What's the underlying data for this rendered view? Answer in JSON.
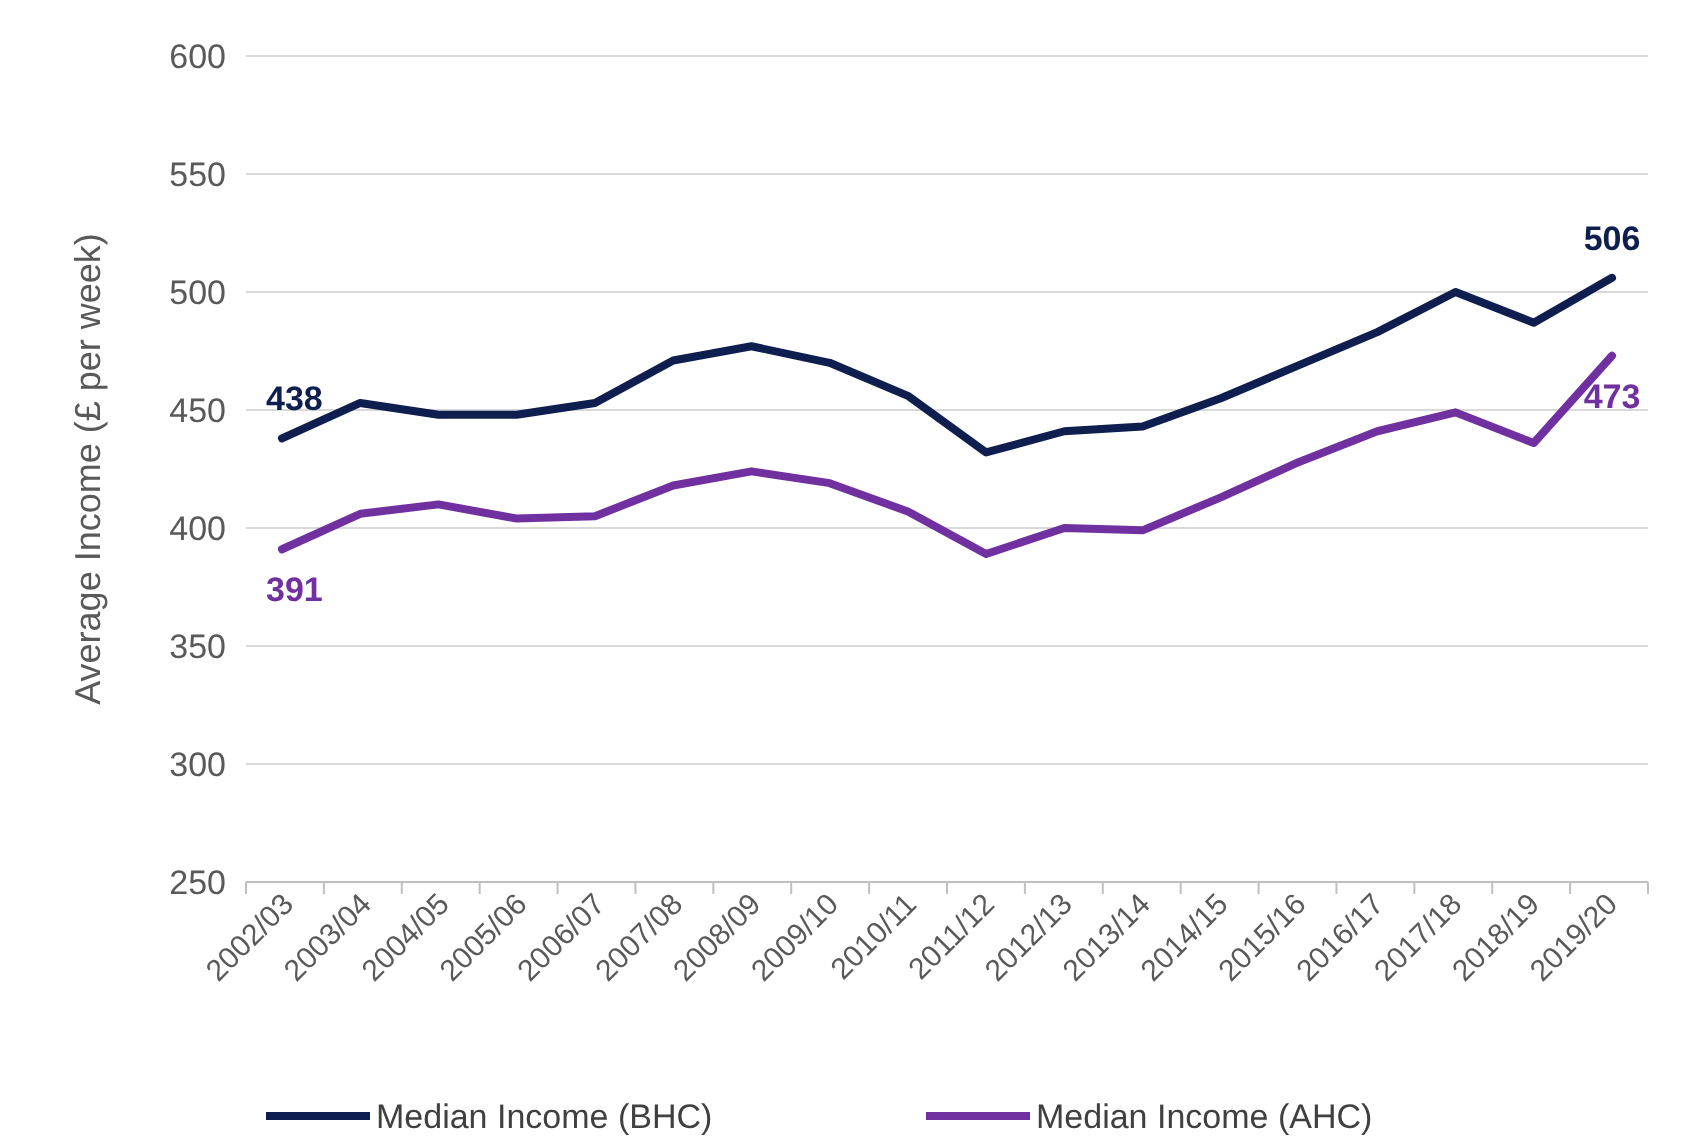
{
  "chart_data": {
    "type": "line",
    "ylabel": "Average Income (£ per week)",
    "categories": [
      "2002/03",
      "2003/04",
      "2004/05",
      "2005/06",
      "2006/07",
      "2007/08",
      "2008/09",
      "2009/10",
      "2010/11",
      "2011/12",
      "2012/13",
      "2013/14",
      "2014/15",
      "2015/16",
      "2016/17",
      "2017/18",
      "2018/19",
      "2019/20"
    ],
    "series": [
      {
        "name": "Median Income (BHC)",
        "color": "#0e1e4e",
        "values": [
          438,
          453,
          448,
          448,
          453,
          471,
          477,
          470,
          456,
          432,
          441,
          443,
          455,
          469,
          483,
          500,
          487,
          506
        ],
        "value_labels": [
          "438",
          null,
          null,
          null,
          null,
          null,
          null,
          null,
          null,
          null,
          null,
          null,
          null,
          null,
          null,
          null,
          null,
          "506"
        ]
      },
      {
        "name": "Median Income (AHC)",
        "color": "#7030a0",
        "values": [
          391,
          406,
          410,
          404,
          405,
          418,
          424,
          419,
          407,
          389,
          400,
          399,
          413,
          428,
          441,
          449,
          436,
          473
        ],
        "value_labels": [
          "391",
          null,
          null,
          null,
          null,
          null,
          null,
          null,
          null,
          null,
          null,
          null,
          null,
          null,
          null,
          null,
          null,
          "473"
        ]
      }
    ],
    "ylim": [
      250,
      600
    ],
    "yticks": [
      250,
      300,
      350,
      400,
      450,
      500,
      550,
      600
    ],
    "grid": "y",
    "legend": "bottom"
  }
}
